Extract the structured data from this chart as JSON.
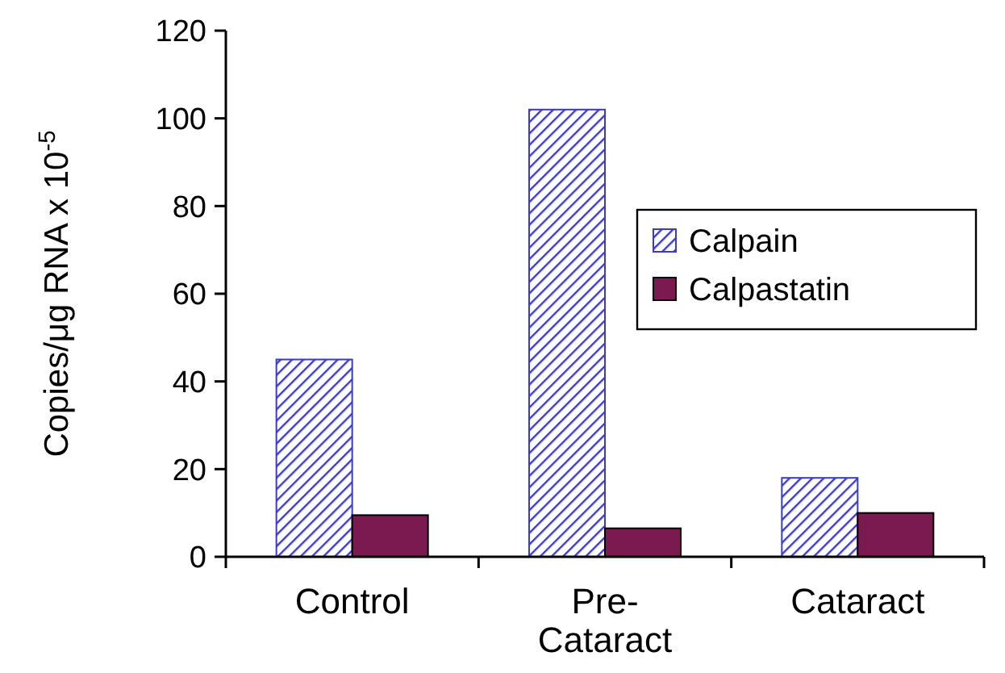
{
  "chart_data": {
    "type": "bar",
    "ylabel": "Copies/μg RNA x 10$^{-5}$",
    "categories": [
      "Control",
      "Pre-\nCataract",
      "Cataract"
    ],
    "series": [
      {
        "name": "Calpain",
        "color": "#3b3bc8",
        "values": [
          45,
          102,
          18
        ]
      },
      {
        "name": "Calpastatin",
        "color": "#7a1a50",
        "values": [
          9.5,
          6.5,
          10
        ]
      }
    ],
    "ylim": [
      0,
      120
    ],
    "yticks": [
      0,
      20,
      40,
      60,
      80,
      100,
      120
    ],
    "grid": false,
    "legend": "right"
  }
}
